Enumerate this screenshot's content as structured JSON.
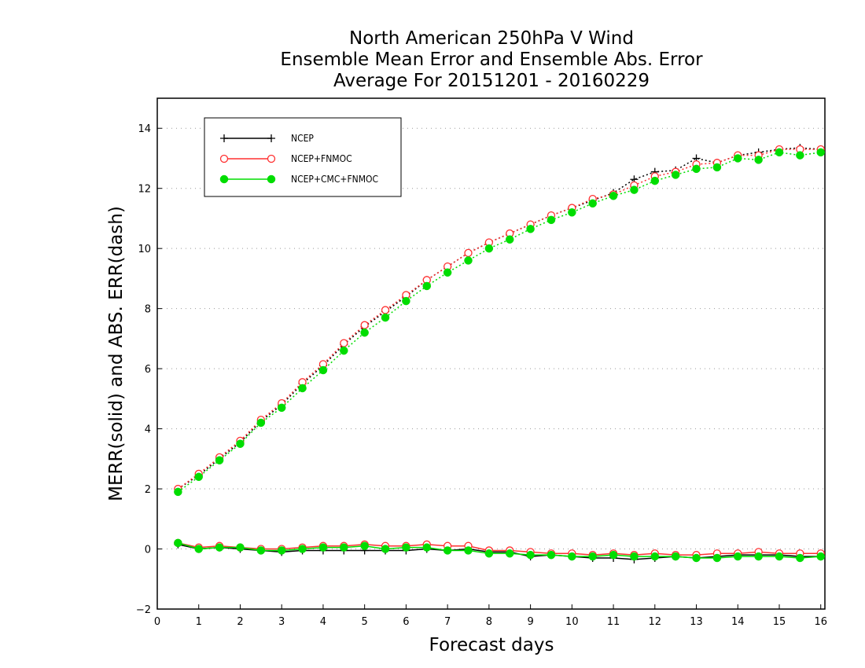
{
  "chart_data": {
    "type": "line",
    "title": [
      "North American 250hPa V Wind",
      "Ensemble Mean Error and Ensemble Abs. Error",
      "Average For 20151201 - 20160229"
    ],
    "xlabel": "Forecast days",
    "ylabel": "MERR(solid) and ABS. ERR(dash)",
    "xlim": [
      0,
      16.1
    ],
    "ylim": [
      -2,
      15
    ],
    "xticks": [
      0,
      1,
      2,
      3,
      4,
      5,
      6,
      7,
      8,
      9,
      10,
      11,
      12,
      13,
      14,
      15,
      16
    ],
    "yticks": [
      -2,
      0,
      2,
      4,
      6,
      8,
      10,
      12,
      14
    ],
    "grid": "horizontal dotted",
    "legend_position": "top-left",
    "x": [
      0.5,
      1,
      1.5,
      2,
      2.5,
      3,
      3.5,
      4,
      4.5,
      5,
      5.5,
      6,
      6.5,
      7,
      7.5,
      8,
      8.5,
      9,
      9.5,
      10,
      10.5,
      11,
      11.5,
      12,
      12.5,
      13,
      13.5,
      14,
      14.5,
      15,
      15.5,
      16
    ],
    "series": [
      {
        "name": "NCEP",
        "color": "#000000",
        "marker": "plus",
        "abs_err": [
          2.0,
          2.45,
          3.0,
          3.55,
          4.25,
          4.8,
          5.5,
          6.1,
          6.8,
          7.4,
          7.9,
          8.4,
          8.95,
          9.4,
          9.85,
          10.2,
          10.5,
          10.8,
          11.1,
          11.35,
          11.6,
          11.85,
          12.3,
          12.55,
          12.6,
          13.0,
          12.85,
          13.1,
          13.2,
          13.3,
          13.35,
          13.3
        ],
        "mean_err": [
          0.15,
          0.0,
          0.05,
          0.0,
          -0.05,
          -0.1,
          -0.05,
          -0.05,
          -0.05,
          -0.05,
          -0.05,
          -0.05,
          0.0,
          -0.05,
          0.0,
          -0.1,
          -0.1,
          -0.25,
          -0.2,
          -0.25,
          -0.3,
          -0.3,
          -0.35,
          -0.3,
          -0.25,
          -0.3,
          -0.25,
          -0.2,
          -0.2,
          -0.2,
          -0.25,
          -0.25
        ]
      },
      {
        "name": "NCEP+FNMOC",
        "color": "#ff3030",
        "marker": "open-circle",
        "abs_err": [
          2.0,
          2.5,
          3.05,
          3.6,
          4.3,
          4.85,
          5.55,
          6.15,
          6.85,
          7.45,
          7.95,
          8.45,
          8.95,
          9.4,
          9.85,
          10.2,
          10.5,
          10.8,
          11.1,
          11.35,
          11.65,
          11.8,
          12.1,
          12.4,
          12.55,
          12.8,
          12.85,
          13.1,
          13.1,
          13.3,
          13.3,
          13.3
        ],
        "mean_err": [
          0.2,
          0.05,
          0.1,
          0.05,
          0.0,
          0.0,
          0.05,
          0.1,
          0.1,
          0.15,
          0.1,
          0.1,
          0.15,
          0.1,
          0.1,
          -0.05,
          -0.05,
          -0.1,
          -0.15,
          -0.15,
          -0.2,
          -0.15,
          -0.2,
          -0.15,
          -0.2,
          -0.2,
          -0.15,
          -0.15,
          -0.1,
          -0.15,
          -0.15,
          -0.15
        ]
      },
      {
        "name": "NCEP+CMC+FNMOC",
        "color": "#00dd00",
        "marker": "filled-circle",
        "abs_err": [
          1.9,
          2.4,
          2.95,
          3.5,
          4.2,
          4.7,
          5.35,
          5.95,
          6.6,
          7.2,
          7.7,
          8.25,
          8.75,
          9.2,
          9.6,
          10.0,
          10.3,
          10.65,
          10.95,
          11.2,
          11.5,
          11.75,
          11.95,
          12.25,
          12.45,
          12.65,
          12.7,
          13.0,
          12.95,
          13.2,
          13.1,
          13.2
        ],
        "mean_err": [
          0.2,
          0.0,
          0.05,
          0.05,
          -0.05,
          -0.05,
          0.0,
          0.05,
          0.05,
          0.1,
          0.0,
          0.05,
          0.05,
          -0.05,
          -0.05,
          -0.15,
          -0.15,
          -0.2,
          -0.2,
          -0.25,
          -0.25,
          -0.2,
          -0.25,
          -0.25,
          -0.25,
          -0.3,
          -0.3,
          -0.25,
          -0.25,
          -0.25,
          -0.3,
          -0.25
        ]
      }
    ]
  }
}
